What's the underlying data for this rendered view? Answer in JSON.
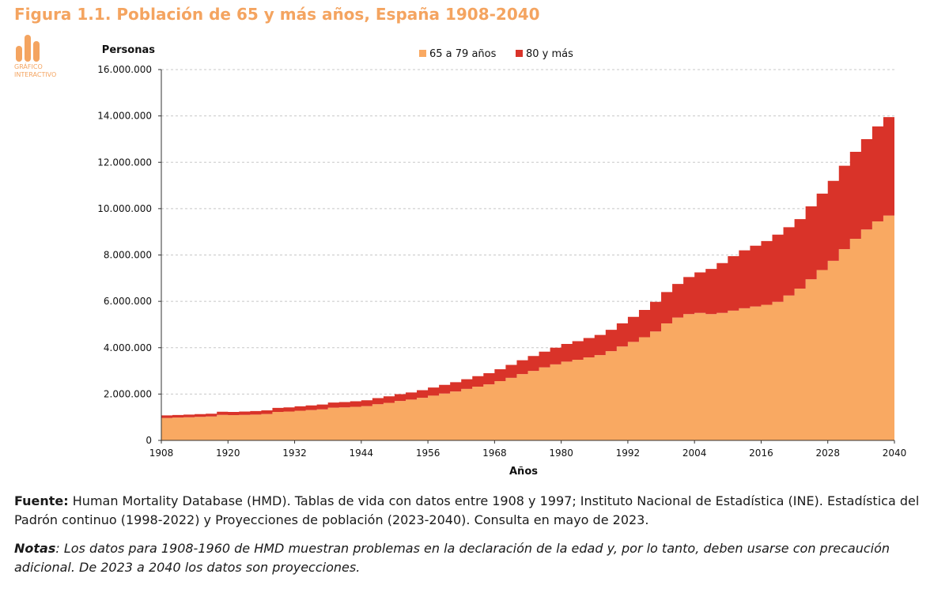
{
  "header": {
    "title": "Figura 1.1. Población de 65 y más años, España 1908-2040",
    "badge_label": "GRÁFICO\nINTERACTIVO"
  },
  "colors": {
    "accent": "#f4a460",
    "series_65_79": "#f9a962",
    "series_80": "#d93329"
  },
  "chart_data": {
    "type": "area",
    "stacked": true,
    "ylabel": "Personas",
    "xlabel": "Años",
    "ylim": [
      0,
      16000000
    ],
    "y_ticks": [
      0,
      2000000,
      4000000,
      6000000,
      8000000,
      10000000,
      12000000,
      14000000,
      16000000
    ],
    "y_tick_labels": [
      "0",
      "2.000.000",
      "4.000.000",
      "6.000.000",
      "8.000.000",
      "10.000.000",
      "12.000.000",
      "14.000.000",
      "16.000.000"
    ],
    "x_tick_labels": [
      "1908",
      "1920",
      "1932",
      "1944",
      "1956",
      "1968",
      "1980",
      "1992",
      "2004",
      "2016",
      "2028",
      "2040"
    ],
    "xlim": [
      1908,
      2040
    ],
    "grid": "horizontal dashed",
    "legend_position": "top-center",
    "x": [
      1908,
      1910,
      1912,
      1914,
      1916,
      1918,
      1920,
      1922,
      1924,
      1926,
      1928,
      1930,
      1932,
      1934,
      1936,
      1938,
      1940,
      1942,
      1944,
      1946,
      1948,
      1950,
      1952,
      1954,
      1956,
      1958,
      1960,
      1962,
      1964,
      1966,
      1968,
      1970,
      1972,
      1974,
      1976,
      1978,
      1980,
      1982,
      1984,
      1986,
      1988,
      1990,
      1992,
      1994,
      1996,
      1998,
      2000,
      2002,
      2004,
      2006,
      2008,
      2010,
      2012,
      2014,
      2016,
      2018,
      2020,
      2022,
      2024,
      2026,
      2028,
      2030,
      2032,
      2034,
      2036,
      2038,
      2040
    ],
    "series": [
      {
        "name": "65 a 79 años",
        "color": "#f9a962",
        "values": [
          970000,
          985000,
          1000000,
          1015000,
          1030000,
          1100000,
          1090000,
          1100000,
          1115000,
          1140000,
          1230000,
          1245000,
          1280000,
          1310000,
          1340000,
          1410000,
          1425000,
          1450000,
          1480000,
          1560000,
          1620000,
          1700000,
          1760000,
          1840000,
          1930000,
          2020000,
          2110000,
          2220000,
          2320000,
          2420000,
          2560000,
          2700000,
          2860000,
          3000000,
          3150000,
          3280000,
          3400000,
          3480000,
          3580000,
          3680000,
          3850000,
          4050000,
          4250000,
          4450000,
          4700000,
          5050000,
          5300000,
          5450000,
          5500000,
          5450000,
          5500000,
          5600000,
          5700000,
          5780000,
          5850000,
          5980000,
          6250000,
          6550000,
          6950000,
          7350000,
          7750000,
          8250000,
          8700000,
          9100000,
          9450000,
          9700000,
          9800000
        ]
      },
      {
        "name": "80 y más",
        "color": "#d93329",
        "values": [
          110000,
          112000,
          115000,
          118000,
          120000,
          135000,
          140000,
          145000,
          150000,
          155000,
          175000,
          180000,
          190000,
          200000,
          210000,
          225000,
          230000,
          240000,
          250000,
          265000,
          280000,
          295000,
          310000,
          325000,
          350000,
          375000,
          400000,
          420000,
          450000,
          480000,
          510000,
          560000,
          600000,
          640000,
          680000,
          720000,
          760000,
          800000,
          840000,
          870000,
          920000,
          1000000,
          1080000,
          1180000,
          1280000,
          1350000,
          1450000,
          1600000,
          1750000,
          1950000,
          2150000,
          2350000,
          2500000,
          2620000,
          2750000,
          2900000,
          2950000,
          3000000,
          3150000,
          3300000,
          3450000,
          3600000,
          3750000,
          3900000,
          4100000,
          4250000,
          4450000
        ]
      }
    ]
  },
  "footer": {
    "source_label": "Fuente:",
    "source_text": "Human Mortality Database (HMD). Tablas de vida con datos entre 1908 y 1997; Instituto Nacional de Estadística (INE). Estadística del Padrón continuo (1998-2022) y Proyecciones de población (2023-2040). Consulta en mayo de 2023.",
    "notes_label": "Notas",
    "notes_text": ": Los datos para 1908-1960 de HMD muestran problemas en la declaración de la edad y, por lo tanto, deben usarse con precaución adicional. De 2023 a 2040 los datos son proyecciones."
  }
}
